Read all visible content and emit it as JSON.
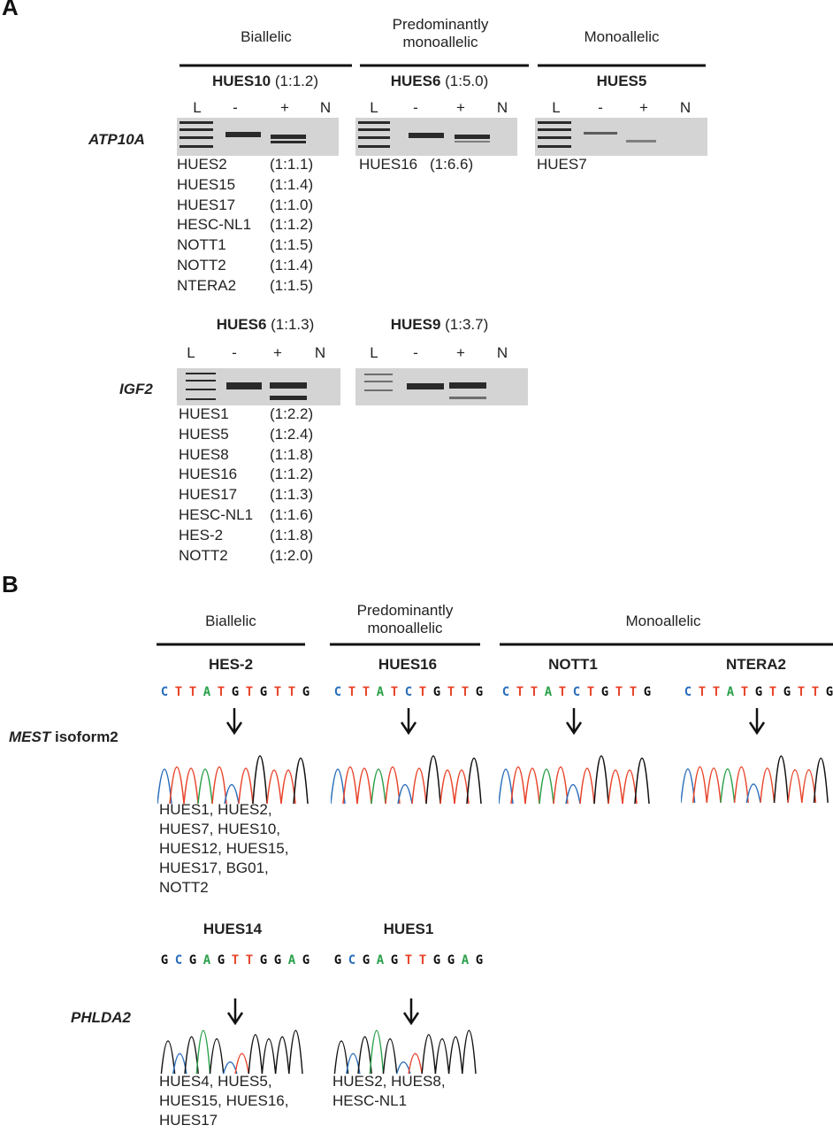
{
  "panel_a": {
    "label": "A",
    "categories": [
      "Biallelic",
      "Predominantly monoallelic",
      "Monoallelic"
    ],
    "rows": [
      {
        "gene": "ATP10A",
        "gels": [
          {
            "line": "HUES10",
            "ratio": "(1:1.2)",
            "lanes": [
              "L",
              "-",
              "+",
              "N"
            ],
            "list": [
              [
                "HUES2",
                "(1:1.1)"
              ],
              [
                "HUES15",
                "(1:1.4)"
              ],
              [
                "HUES17",
                "(1:1.0)"
              ],
              [
                "HESC-NL1",
                "(1:1.2)"
              ],
              [
                "NOTT1",
                "(1:1.5)"
              ],
              [
                "NOTT2",
                "(1:1.4)"
              ],
              [
                "NTERA2",
                "(1:1.5)"
              ]
            ]
          },
          {
            "line": "HUES6",
            "ratio": "(1:5.0)",
            "lanes": [
              "L",
              "-",
              "+",
              "N"
            ],
            "list": [
              [
                "HUES16",
                "(1:6.6)"
              ]
            ]
          },
          {
            "line": "HUES5",
            "lanes": [
              "L",
              "-",
              "+",
              "N"
            ],
            "list": [
              [
                "HUES7"
              ]
            ]
          }
        ]
      },
      {
        "gene": "IGF2",
        "gels": [
          {
            "line": "HUES6",
            "ratio": "(1:1.3)",
            "lanes": [
              "L",
              "-",
              "+",
              "N"
            ],
            "list": [
              [
                "HUES1",
                "(1:2.2)"
              ],
              [
                "HUES5",
                "(1:2.4)"
              ],
              [
                "HUES8",
                "(1:1.8)"
              ],
              [
                "HUES16",
                "(1:1.2)"
              ],
              [
                "HUES17",
                "(1:1.3)"
              ],
              [
                "HESC-NL1",
                "(1:1.6)"
              ],
              [
                "HES-2",
                "(1:1.8)"
              ],
              [
                "NOTT2",
                "(1:2.0)"
              ]
            ]
          },
          {
            "line": "HUES9",
            "ratio": "(1:3.7)",
            "lanes": [
              "L",
              "-",
              "+",
              "N"
            ],
            "list": []
          }
        ]
      }
    ]
  },
  "panel_b": {
    "label": "B",
    "categories": [
      "Biallelic",
      "Predominantly monoallelic",
      "Monoallelic"
    ],
    "rows": [
      {
        "gene": "MEST",
        "gene_suffix": "isoform2",
        "samples": [
          {
            "line": "HES-2",
            "sequence": [
              "C",
              "T",
              "T",
              "A",
              "T",
              "G",
              "T",
              "G",
              "T",
              "T",
              "G"
            ],
            "list": [
              "HUES1, HUES2,",
              "HUES7, HUES10,",
              "HUES12, HUES15,",
              "HUES17, BG01,",
              "NOTT2"
            ]
          },
          {
            "line": "HUES16",
            "sequence": [
              "C",
              "T",
              "T",
              "A",
              "T",
              "C",
              "T",
              "G",
              "T",
              "T",
              "G"
            ],
            "list": []
          },
          {
            "line": "NOTT1",
            "sequence": [
              "C",
              "T",
              "T",
              "A",
              "T",
              "C",
              "T",
              "G",
              "T",
              "T",
              "G"
            ],
            "list": []
          },
          {
            "line": "NTERA2",
            "sequence": [
              "C",
              "T",
              "T",
              "A",
              "T",
              "G",
              "T",
              "G",
              "T",
              "T",
              "G"
            ],
            "list": []
          }
        ]
      },
      {
        "gene": "PHLDA2",
        "samples": [
          {
            "line": "HUES14",
            "sequence": [
              "G",
              "C",
              "G",
              "A",
              "G",
              "T",
              "T",
              "G",
              "G",
              "A",
              "G"
            ],
            "list": [
              "HUES4, HUES5,",
              "HUES15, HUES16,",
              "HUES17"
            ]
          },
          {
            "line": "HUES1",
            "sequence": [
              "G",
              "C",
              "G",
              "A",
              "G",
              "T",
              "T",
              "G",
              "G",
              "A",
              "G"
            ],
            "list": [
              "HUES2, HUES8,",
              "HESC-NL1"
            ]
          }
        ]
      }
    ]
  }
}
